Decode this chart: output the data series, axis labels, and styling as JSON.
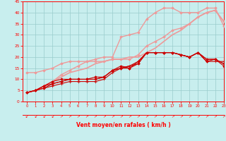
{
  "xlabel": "Vent moyen/en rafales ( km/h )",
  "xlim": [
    -0.5,
    23
  ],
  "ylim": [
    0,
    45
  ],
  "xticks": [
    0,
    1,
    2,
    3,
    4,
    5,
    6,
    7,
    8,
    9,
    10,
    11,
    12,
    13,
    14,
    15,
    16,
    17,
    18,
    19,
    20,
    21,
    22,
    23
  ],
  "yticks": [
    0,
    5,
    10,
    15,
    20,
    25,
    30,
    35,
    40,
    45
  ],
  "background_color": "#c8eeee",
  "grid_color": "#99cccc",
  "lines": [
    {
      "x": [
        0,
        1,
        2,
        3,
        4,
        5,
        6,
        7,
        8,
        9,
        10,
        11,
        12,
        13,
        14,
        15,
        16,
        17,
        18,
        19,
        20,
        21,
        22,
        23
      ],
      "y": [
        4,
        5,
        6,
        7,
        8,
        9,
        9,
        9,
        9,
        10,
        13,
        15,
        16,
        17,
        22,
        22,
        22,
        22,
        21,
        20,
        22,
        18,
        18,
        18
      ],
      "color": "#cc0000",
      "lw": 0.8,
      "marker": "+",
      "ms": 3.0,
      "zorder": 5
    },
    {
      "x": [
        0,
        1,
        2,
        3,
        4,
        5,
        6,
        7,
        8,
        9,
        10,
        11,
        12,
        13,
        14,
        15,
        16,
        17,
        18,
        19,
        20,
        21,
        22,
        23
      ],
      "y": [
        4,
        5,
        6,
        8,
        9,
        10,
        10,
        10,
        10,
        11,
        14,
        15,
        15,
        18,
        22,
        22,
        22,
        22,
        21,
        20,
        22,
        19,
        19,
        17
      ],
      "color": "#cc0000",
      "lw": 0.8,
      "marker": "D",
      "ms": 1.8,
      "zorder": 5
    },
    {
      "x": [
        0,
        1,
        2,
        3,
        4,
        5,
        6,
        7,
        8,
        9,
        10,
        11,
        12,
        13,
        14,
        15,
        16,
        17,
        18,
        19,
        20,
        21,
        22,
        23
      ],
      "y": [
        4,
        5,
        7,
        8,
        9,
        10,
        10,
        10,
        10,
        11,
        14,
        15,
        16,
        18,
        22,
        22,
        22,
        22,
        21,
        20,
        22,
        19,
        19,
        17
      ],
      "color": "#cc0000",
      "lw": 0.8,
      "marker": null,
      "ms": 0,
      "zorder": 4
    },
    {
      "x": [
        0,
        1,
        2,
        3,
        4,
        5,
        6,
        7,
        8,
        9,
        10,
        11,
        12,
        13,
        14,
        15,
        16,
        17,
        18,
        19,
        20,
        21,
        22,
        23
      ],
      "y": [
        4,
        5,
        7,
        9,
        10,
        10,
        10,
        10,
        11,
        11,
        14,
        16,
        15,
        17,
        22,
        22,
        22,
        22,
        21,
        20,
        22,
        18,
        19,
        16
      ],
      "color": "#cc0000",
      "lw": 0.8,
      "marker": "D",
      "ms": 1.8,
      "zorder": 4
    },
    {
      "x": [
        0,
        1,
        2,
        3,
        4,
        5,
        6,
        7,
        8,
        9,
        10,
        11,
        12,
        13,
        14,
        15,
        16,
        17,
        18,
        19,
        20,
        21,
        22,
        23
      ],
      "y": [
        13,
        13,
        14,
        15,
        17,
        18,
        18,
        18,
        18,
        18,
        19,
        19,
        19,
        21,
        25,
        27,
        29,
        32,
        33,
        35,
        38,
        40,
        41,
        36
      ],
      "color": "#ee9999",
      "lw": 1.0,
      "marker": "D",
      "ms": 1.8,
      "zorder": 3
    },
    {
      "x": [
        0,
        1,
        2,
        3,
        4,
        5,
        6,
        7,
        8,
        9,
        10,
        11,
        12,
        13,
        14,
        15,
        16,
        17,
        18,
        19,
        20,
        21,
        22,
        23
      ],
      "y": [
        4,
        5,
        7,
        9,
        11,
        13,
        14,
        15,
        17,
        18,
        19,
        19,
        20,
        20,
        22,
        24,
        27,
        30,
        32,
        35,
        38,
        40,
        41,
        36
      ],
      "color": "#ee9999",
      "lw": 1.2,
      "marker": null,
      "ms": 0,
      "zorder": 2
    },
    {
      "x": [
        0,
        1,
        2,
        3,
        4,
        5,
        6,
        7,
        8,
        9,
        10,
        11,
        12,
        13,
        14,
        15,
        16,
        17,
        18,
        19,
        20,
        21,
        22,
        23
      ],
      "y": [
        4,
        5,
        7,
        9,
        12,
        14,
        16,
        18,
        19,
        20,
        20,
        29,
        30,
        31,
        37,
        40,
        42,
        42,
        40,
        40,
        40,
        42,
        42,
        34
      ],
      "color": "#ee9999",
      "lw": 1.0,
      "marker": "D",
      "ms": 1.8,
      "zorder": 3
    }
  ]
}
